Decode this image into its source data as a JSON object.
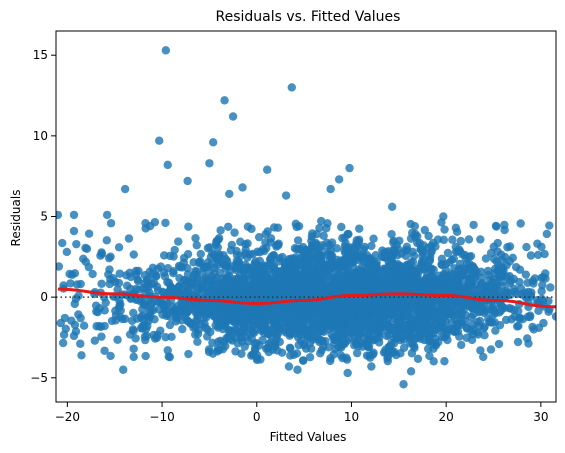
{
  "chart_data": {
    "type": "scatter",
    "title": "Residuals vs. Fitted Values",
    "xlabel": "Fitted Values",
    "ylabel": "Residuals",
    "xlim": [
      -21.2,
      31.6
    ],
    "ylim": [
      -6.5,
      16.5
    ],
    "xticks": [
      -20,
      -10,
      0,
      10,
      20,
      30
    ],
    "yticks": [
      -5,
      0,
      5,
      10,
      15
    ],
    "grid": false,
    "legend": "none",
    "colors": {
      "points": "#1f77b4",
      "smooth_line": "#e41a1c",
      "reference_line": "#333333"
    },
    "reference_line": {
      "y": 0,
      "style": "dotted"
    },
    "point_cloud": {
      "description_x_range": [
        -21,
        31
      ],
      "dense_center_x": 8,
      "dense_residual_range": [
        -4,
        4
      ]
    },
    "outliers": [
      {
        "x": -9.6,
        "y": 15.3
      },
      {
        "x": 3.7,
        "y": 13.0
      },
      {
        "x": -3.4,
        "y": 12.2
      },
      {
        "x": -2.5,
        "y": 11.2
      },
      {
        "x": -10.3,
        "y": 9.7
      },
      {
        "x": -4.6,
        "y": 9.6
      },
      {
        "x": -5.0,
        "y": 8.3
      },
      {
        "x": -9.4,
        "y": 8.2
      },
      {
        "x": 9.8,
        "y": 8.0
      },
      {
        "x": 1.1,
        "y": 7.9
      },
      {
        "x": 8.7,
        "y": 7.3
      },
      {
        "x": -7.3,
        "y": 7.2
      },
      {
        "x": -1.5,
        "y": 6.8
      },
      {
        "x": -13.9,
        "y": 6.7
      },
      {
        "x": -2.9,
        "y": 6.4
      },
      {
        "x": 3.1,
        "y": 6.3
      },
      {
        "x": 7.8,
        "y": 6.7
      },
      {
        "x": 14.3,
        "y": 5.6
      },
      {
        "x": 19.7,
        "y": 5.0
      },
      {
        "x": -21.0,
        "y": 5.1
      },
      {
        "x": -19.3,
        "y": 5.1
      },
      {
        "x": -15.8,
        "y": 5.1
      },
      {
        "x": -19.3,
        "y": 4.1
      },
      {
        "x": -20.9,
        "y": 1.9
      },
      {
        "x": -19.1,
        "y": -0.1
      },
      {
        "x": -18.6,
        "y": -1.3
      },
      {
        "x": -19.3,
        "y": -2.4
      },
      {
        "x": -17.1,
        "y": -2.7
      },
      {
        "x": -14.1,
        "y": -4.5
      },
      {
        "x": -13.0,
        "y": -3.2
      },
      {
        "x": -9.4,
        "y": -3.3
      },
      {
        "x": 3.4,
        "y": -4.3
      },
      {
        "x": 4.3,
        "y": -4.5
      },
      {
        "x": 9.6,
        "y": -4.7
      },
      {
        "x": 12.1,
        "y": -4.3
      },
      {
        "x": 15.5,
        "y": -5.4
      },
      {
        "x": 16.3,
        "y": -4.6
      },
      {
        "x": 29.8,
        "y": -1.9
      },
      {
        "x": 31.6,
        "y": -1.2
      },
      {
        "x": 31.0,
        "y": 0.6
      },
      {
        "x": 27.8,
        "y": 1.7
      },
      {
        "x": 26.7,
        "y": 1.3
      }
    ],
    "smooth_line": {
      "x": [
        -21,
        -15,
        -10,
        -5,
        0,
        5,
        10,
        15,
        20,
        25,
        31.6
      ],
      "y": [
        0.5,
        0.2,
        0.0,
        -0.2,
        -0.4,
        -0.2,
        0.1,
        0.2,
        0.1,
        -0.2,
        -0.6
      ]
    }
  }
}
